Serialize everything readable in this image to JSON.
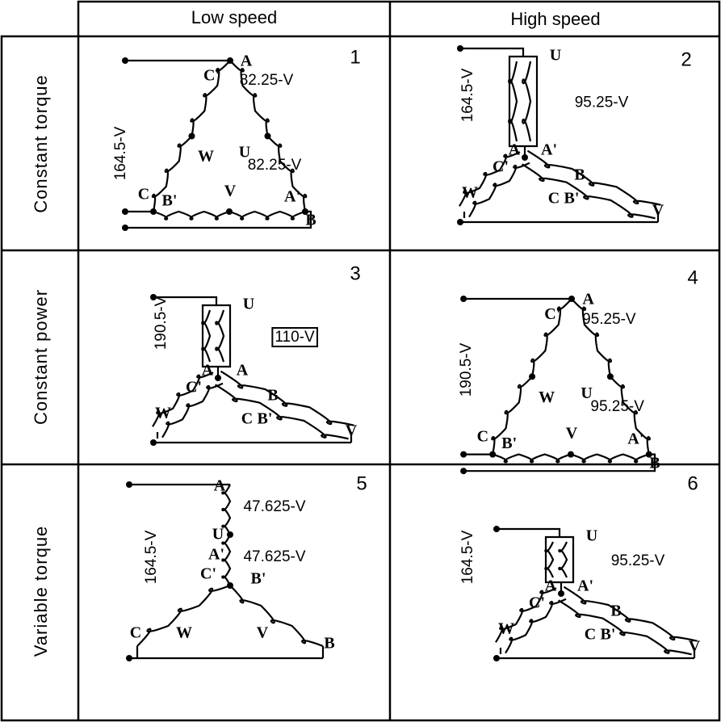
{
  "columns": [
    "Low speed",
    "High speed"
  ],
  "rows": [
    {
      "label": "Constant torque",
      "cells": [
        {
          "number": "1",
          "voltage": "164.5-V",
          "labels": [
            "A",
            "C'",
            "82.25-V",
            "W",
            "U",
            "82.25-V",
            "C",
            "B'",
            "V",
            "A'",
            "B"
          ]
        },
        {
          "number": "2",
          "voltage": "164.5-V",
          "labels": [
            "U",
            "95.25-V",
            "A",
            "A'",
            "C'",
            "B",
            "W",
            "C",
            "B'",
            "V"
          ]
        }
      ]
    },
    {
      "label": "Constant power",
      "cells": [
        {
          "number": "3",
          "voltage": "190.5-V",
          "labels": [
            "U",
            "110-V",
            "A",
            "A",
            "C'",
            "B",
            "W",
            "C",
            "B'",
            "V"
          ]
        },
        {
          "number": "4",
          "voltage": "190.5-V",
          "labels": [
            "A",
            "C'",
            "95.25-V",
            "W",
            "U",
            "95.25-V",
            "C",
            "B'",
            "V",
            "A'",
            "B"
          ]
        }
      ]
    },
    {
      "label": "Variable torque",
      "cells": [
        {
          "number": "5",
          "voltage": "164.5-V",
          "labels": [
            "A",
            "47.625-V",
            "U",
            "A'",
            "47.625-V",
            "C'",
            "B'",
            "C",
            "W",
            "V",
            "B"
          ]
        },
        {
          "number": "6",
          "voltage": "164.5-V",
          "labels": [
            "U",
            "95.25-V",
            "A",
            "A'",
            "C'",
            "B",
            "W",
            "C",
            "B'",
            "V"
          ]
        }
      ]
    }
  ]
}
